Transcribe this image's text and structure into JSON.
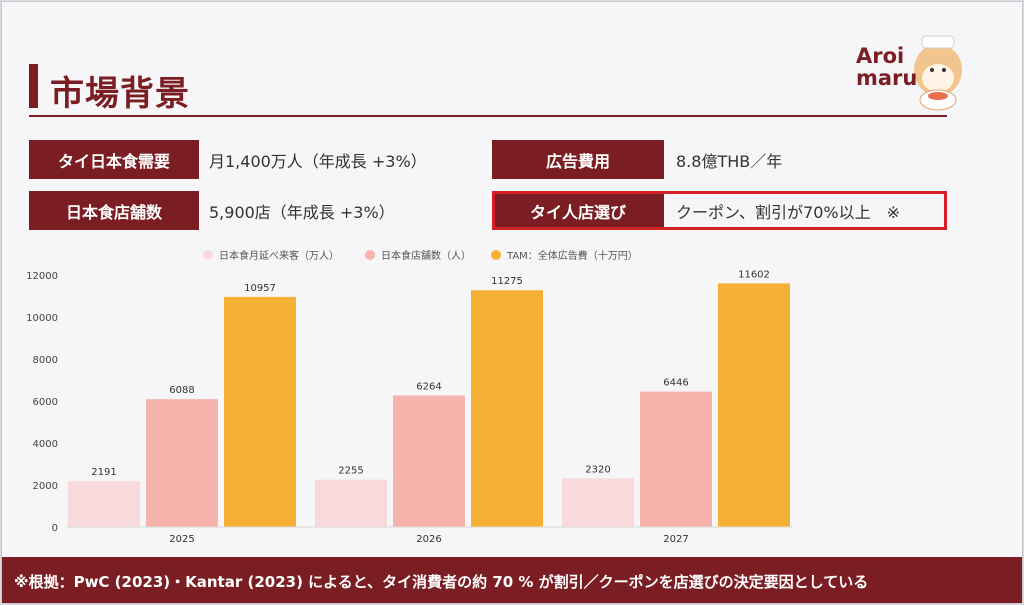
{
  "title": "市場背景",
  "logo": {
    "line1": "Aroi",
    "line2": "maru"
  },
  "metrics": {
    "thai_demand": {
      "label": "タイ日本食需要",
      "value": "月1,400万人（年成長 +3%）"
    },
    "store_count": {
      "label": "日本食店舗数",
      "value": "5,900店（年成長 +3%）"
    },
    "ad_cost": {
      "label": "広告費用",
      "value": "8.8億THB／年"
    },
    "store_choice": {
      "label": "タイ人店選び",
      "value": "クーポン、割引が70%以上　※"
    }
  },
  "colors": {
    "brand": "#7b1e24",
    "highlight": "#d41f25",
    "series": [
      "#f8dadd",
      "#f7b4ad",
      "#f5b136"
    ]
  },
  "chart_data": {
    "type": "bar",
    "categories": [
      "2025",
      "2026",
      "2027"
    ],
    "series": [
      {
        "name": "日本食月延べ来客（万人）",
        "values": [
          2191,
          2255,
          2320
        ]
      },
      {
        "name": "日本食店舗数（人）",
        "values": [
          6088,
          6264,
          6446
        ]
      },
      {
        "name": "TAM：全体広告費（十万円）",
        "values": [
          10957,
          11275,
          11602
        ]
      }
    ],
    "yticks": [
      "0",
      "2000",
      "4000",
      "6000",
      "8000",
      "10000",
      "12000"
    ],
    "ylim": [
      0,
      12000
    ],
    "legend": "top",
    "grid": false
  },
  "footer": "※根拠：PwC (2023)・Kantar (2023) によると、タイ消費者の約 70 % が割引／クーポンを店選びの決定要因としている"
}
